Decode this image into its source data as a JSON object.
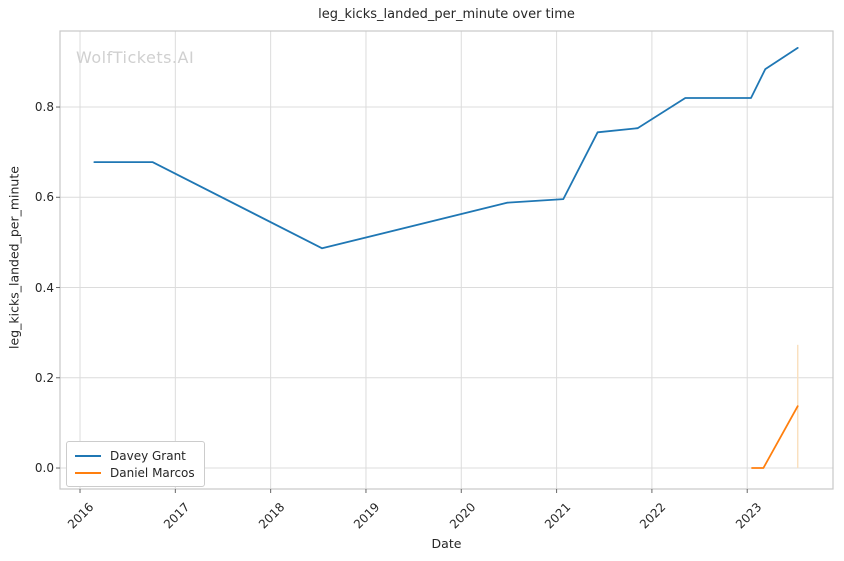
{
  "watermark": "WolfTickets.AI",
  "chart_data": {
    "type": "line",
    "title": "leg_kicks_landed_per_minute over time",
    "xlabel": "Date",
    "ylabel": "leg_kicks_landed_per_minute",
    "grid": true,
    "legend_position": "lower left",
    "xlim": [
      2015.79,
      2023.9
    ],
    "ylim": [
      -0.0465,
      0.9685
    ],
    "x_ticks": [
      "2016",
      "2017",
      "2018",
      "2019",
      "2020",
      "2021",
      "2022",
      "2023"
    ],
    "x_tick_values": [
      2016,
      2017,
      2018,
      2019,
      2020,
      2021,
      2022,
      2023
    ],
    "y_ticks": [
      "0.0",
      "0.2",
      "0.4",
      "0.6",
      "0.8"
    ],
    "y_tick_values": [
      0.0,
      0.2,
      0.4,
      0.6,
      0.8
    ],
    "grid_color": "#dcdcdc",
    "border_color": "#c8c8c8",
    "tick_color": "#666666",
    "series": [
      {
        "name": "Davey Grant",
        "color": "#1f77b4",
        "x": [
          2016.15,
          2016.76,
          2018.54,
          2020.48,
          2021.07,
          2021.43,
          2021.85,
          2022.35,
          2023.04,
          2023.19,
          2023.53
        ],
        "y": [
          0.678,
          0.678,
          0.487,
          0.588,
          0.596,
          0.744,
          0.753,
          0.82,
          0.82,
          0.884,
          0.931
        ]
      },
      {
        "name": "Daniel Marcos",
        "color": "#ff7f0e",
        "x": [
          2023.05,
          2023.17,
          2023.53
        ],
        "y": [
          0.0,
          0.0,
          0.137
        ],
        "error_bar": {
          "x": 2023.53,
          "y_min": 0.0,
          "y_max": 0.273,
          "color": "#fadfbd"
        }
      }
    ]
  }
}
